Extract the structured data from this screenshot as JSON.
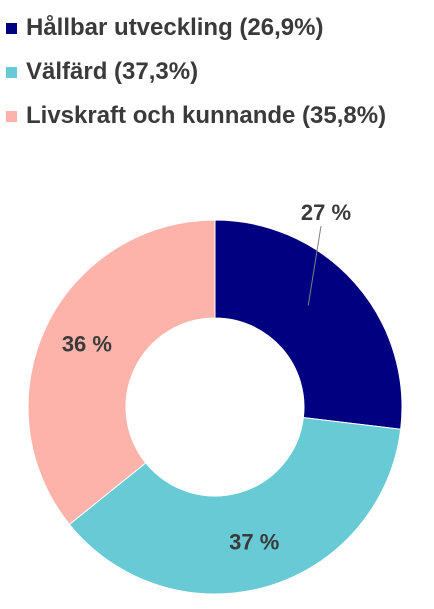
{
  "chart_data": {
    "type": "pie",
    "donut": true,
    "legend_position": "top",
    "series": [
      {
        "name": "Hållbar utveckling",
        "legend_label": "Hållbar utveckling (26,9%)",
        "value": 26.9,
        "data_label": "27 %",
        "color": "#000080"
      },
      {
        "name": "Välfärd",
        "legend_label": "Välfärd (37,3%)",
        "value": 37.3,
        "data_label": "37 %",
        "color": "#67CAD5"
      },
      {
        "name": "Livskraft och kunnande",
        "legend_label": "Livskraft och kunnande (35,8%)",
        "value": 35.8,
        "data_label": "36 %",
        "color": "#FDB3AA"
      }
    ]
  }
}
